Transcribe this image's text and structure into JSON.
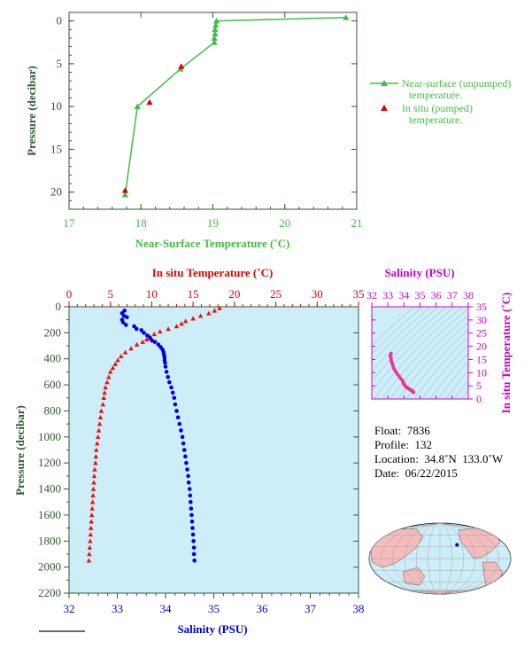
{
  "chart_data": [
    {
      "id": "top",
      "type": "line",
      "xlabel": "Near-Surface Temperature (˚C)",
      "ylabel": "Pressure (decibar)",
      "xlim": [
        17,
        21
      ],
      "ylim": [
        22,
        -1
      ],
      "xticks": [
        "17",
        "18",
        "19",
        "20",
        "21"
      ],
      "yticks": [
        "0",
        "5",
        "10",
        "15",
        "20"
      ],
      "colors": {
        "green": "#44bb44",
        "red": "#dd0000",
        "axis": "#2f5a2f"
      },
      "series": [
        {
          "name": "Near-surface (unpumped) temperature.",
          "kind": "line-triangle",
          "points": [
            [
              20.85,
              -0.4
            ],
            [
              19.05,
              0
            ],
            [
              19.04,
              0.5
            ],
            [
              19.03,
              1.0
            ],
            [
              19.03,
              1.5
            ],
            [
              19.02,
              2.0
            ],
            [
              19.02,
              2.5
            ],
            [
              18.55,
              5.6
            ],
            [
              17.95,
              10.0
            ],
            [
              17.78,
              20.3
            ]
          ]
        },
        {
          "name": "In situ (pumped) temperature.",
          "kind": "triangle",
          "points": [
            [
              18.56,
              5.3
            ],
            [
              18.12,
              9.5
            ],
            [
              17.78,
              19.8
            ]
          ]
        }
      ],
      "legend": [
        {
          "line1": "Near-surface (unpumped)",
          "line2": "temperature."
        },
        {
          "line1": "In situ (pumped)",
          "line2": "temperature."
        }
      ]
    },
    {
      "id": "main",
      "type": "scatter",
      "title_top": "In situ Temperature (˚C)",
      "xlabel": "Salinity (PSU)",
      "ylabel": "Pressure (decibar)",
      "temp_lim": [
        0,
        35
      ],
      "sal_lim": [
        32,
        38
      ],
      "ylim": [
        2200,
        0
      ],
      "temp_ticks": [
        "0",
        "5",
        "10",
        "15",
        "20",
        "25",
        "30",
        "35"
      ],
      "sal_ticks": [
        "32",
        "33",
        "34",
        "35",
        "36",
        "37",
        "38"
      ],
      "pres_ticks": [
        "0",
        "200",
        "400",
        "600",
        "800",
        "1000",
        "1200",
        "1400",
        "1600",
        "1800",
        "2000",
        "2200"
      ],
      "colors": {
        "bg": "#cdeef8",
        "temp": "#ee1111",
        "sal": "#0000dd"
      },
      "temperature": [
        [
          18.2,
          10
        ],
        [
          17.6,
          30
        ],
        [
          16.9,
          50
        ],
        [
          15.9,
          70
        ],
        [
          15.0,
          90
        ],
        [
          14.1,
          110
        ],
        [
          13.6,
          130
        ],
        [
          13.0,
          150
        ],
        [
          12.0,
          170
        ],
        [
          11.0,
          190
        ],
        [
          10.3,
          210
        ],
        [
          9.8,
          230
        ],
        [
          9.4,
          250
        ],
        [
          8.9,
          270
        ],
        [
          8.2,
          290
        ],
        [
          7.5,
          320
        ],
        [
          6.8,
          350
        ],
        [
          6.3,
          380
        ],
        [
          5.9,
          410
        ],
        [
          5.6,
          440
        ],
        [
          5.3,
          470
        ],
        [
          5.0,
          500
        ],
        [
          4.8,
          540
        ],
        [
          4.6,
          580
        ],
        [
          4.4,
          620
        ],
        [
          4.3,
          660
        ],
        [
          4.2,
          700
        ],
        [
          4.1,
          750
        ],
        [
          3.9,
          800
        ],
        [
          3.8,
          850
        ],
        [
          3.7,
          900
        ],
        [
          3.6,
          950
        ],
        [
          3.5,
          1000
        ],
        [
          3.4,
          1050
        ],
        [
          3.3,
          1100
        ],
        [
          3.25,
          1150
        ],
        [
          3.2,
          1200
        ],
        [
          3.1,
          1250
        ],
        [
          3.05,
          1300
        ],
        [
          3.0,
          1350
        ],
        [
          2.95,
          1400
        ],
        [
          2.9,
          1450
        ],
        [
          2.85,
          1500
        ],
        [
          2.8,
          1550
        ],
        [
          2.75,
          1600
        ],
        [
          2.7,
          1650
        ],
        [
          2.65,
          1700
        ],
        [
          2.6,
          1750
        ],
        [
          2.55,
          1800
        ],
        [
          2.5,
          1850
        ],
        [
          2.45,
          1900
        ],
        [
          2.4,
          1950
        ]
      ],
      "salinity": [
        [
          33.15,
          30
        ],
        [
          33.1,
          50
        ],
        [
          33.14,
          70
        ],
        [
          33.2,
          80
        ],
        [
          33.1,
          100
        ],
        [
          33.12,
          120
        ],
        [
          33.18,
          140
        ],
        [
          33.35,
          150
        ],
        [
          33.4,
          170
        ],
        [
          33.5,
          180
        ],
        [
          33.55,
          200
        ],
        [
          33.62,
          220
        ],
        [
          33.68,
          240
        ],
        [
          33.72,
          260
        ],
        [
          33.78,
          270
        ],
        [
          33.85,
          290
        ],
        [
          33.9,
          310
        ],
        [
          33.94,
          330
        ],
        [
          33.96,
          350
        ],
        [
          33.97,
          370
        ],
        [
          33.98,
          390
        ],
        [
          33.98,
          410
        ],
        [
          33.99,
          430
        ],
        [
          34.0,
          460
        ],
        [
          34.02,
          500
        ],
        [
          34.05,
          540
        ],
        [
          34.08,
          580
        ],
        [
          34.12,
          620
        ],
        [
          34.15,
          660
        ],
        [
          34.18,
          700
        ],
        [
          34.2,
          750
        ],
        [
          34.23,
          800
        ],
        [
          34.26,
          850
        ],
        [
          34.29,
          900
        ],
        [
          34.32,
          950
        ],
        [
          34.35,
          1000
        ],
        [
          34.37,
          1050
        ],
        [
          34.39,
          1100
        ],
        [
          34.41,
          1150
        ],
        [
          34.43,
          1200
        ],
        [
          34.45,
          1250
        ],
        [
          34.47,
          1300
        ],
        [
          34.48,
          1350
        ],
        [
          34.5,
          1400
        ],
        [
          34.51,
          1450
        ],
        [
          34.52,
          1500
        ],
        [
          34.53,
          1550
        ],
        [
          34.54,
          1600
        ],
        [
          34.55,
          1650
        ],
        [
          34.56,
          1700
        ],
        [
          34.57,
          1750
        ],
        [
          34.58,
          1800
        ],
        [
          34.59,
          1850
        ],
        [
          34.59,
          1900
        ],
        [
          34.6,
          1950
        ]
      ]
    },
    {
      "id": "ts",
      "type": "scatter",
      "title_top": "Salinity (PSU)",
      "ylabel": "In situ Temperature (˚C)",
      "xlim": [
        32,
        38
      ],
      "ylim": [
        0,
        35
      ],
      "xticks": [
        "32",
        "33",
        "34",
        "35",
        "36",
        "37",
        "38"
      ],
      "yticks": [
        "0",
        "5",
        "10",
        "15",
        "20",
        "25",
        "30",
        "35"
      ],
      "colors": {
        "axis": "#cc00cc",
        "point": "#ee3399"
      },
      "points": [
        [
          33.2,
          17.2
        ],
        [
          33.15,
          16.4
        ],
        [
          33.2,
          15.4
        ],
        [
          33.2,
          14.6
        ],
        [
          33.25,
          13.8
        ],
        [
          33.3,
          12.9
        ],
        [
          33.35,
          12.0
        ],
        [
          33.4,
          11.2
        ],
        [
          33.5,
          10.3
        ],
        [
          33.6,
          9.4
        ],
        [
          33.7,
          8.6
        ],
        [
          33.8,
          7.8
        ],
        [
          33.9,
          7.0
        ],
        [
          33.95,
          6.3
        ],
        [
          34.0,
          5.7
        ],
        [
          34.05,
          5.2
        ],
        [
          34.1,
          4.8
        ],
        [
          34.15,
          4.5
        ],
        [
          34.2,
          4.3
        ],
        [
          34.25,
          4.1
        ],
        [
          34.3,
          3.9
        ],
        [
          34.35,
          3.7
        ],
        [
          34.4,
          3.5
        ],
        [
          34.45,
          3.3
        ],
        [
          34.5,
          3.1
        ],
        [
          34.55,
          2.9
        ],
        [
          34.58,
          2.7
        ],
        [
          34.6,
          2.5
        ]
      ]
    }
  ],
  "info": {
    "float_label": "Float:",
    "float_value": "7836",
    "profile_label": "Profile:",
    "profile_value": "132",
    "location_label": "Location:",
    "location_value": "34.8˚N  133.0˚W",
    "date_label": "Date:",
    "date_value": "06/22/2015"
  },
  "map": {
    "land_color": "#f4bcbc",
    "ocean_color": "#cdeef8",
    "marker_color": "#0000cc",
    "marker": [
      -133.0,
      34.8
    ]
  }
}
